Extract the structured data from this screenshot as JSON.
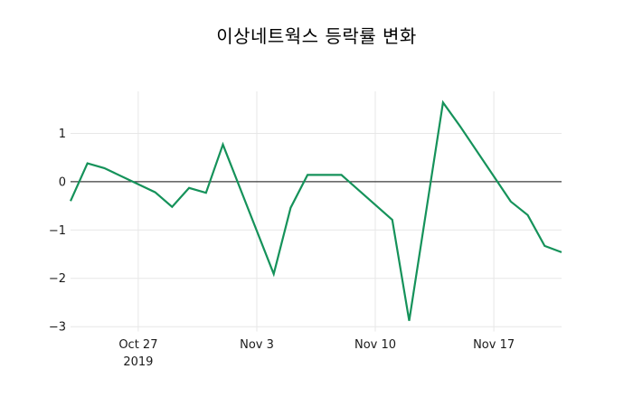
{
  "chart_data": {
    "type": "line",
    "title": "이상네트웍스 등락률 변화",
    "series_name": "등락률",
    "x": [
      "2019-10-23",
      "2019-10-24",
      "2019-10-25",
      "2019-10-28",
      "2019-10-29",
      "2019-10-30",
      "2019-10-31",
      "2019-11-01",
      "2019-11-04",
      "2019-11-05",
      "2019-11-06",
      "2019-11-07",
      "2019-11-08",
      "2019-11-11",
      "2019-11-12",
      "2019-11-13",
      "2019-11-14",
      "2019-11-15",
      "2019-11-18",
      "2019-11-19",
      "2019-11-20",
      "2019-11-21"
    ],
    "values": [
      -0.4,
      0.38,
      0.28,
      -0.22,
      -0.52,
      -0.13,
      -0.23,
      0.77,
      -1.91,
      -0.54,
      0.14,
      0.14,
      0.14,
      -0.79,
      -2.88,
      -0.62,
      1.64,
      1.15,
      -0.41,
      -0.69,
      -1.33,
      -1.46
    ],
    "x_ticks": [
      {
        "date": "2019-10-27",
        "label": "Oct 27",
        "sublabel": "2019"
      },
      {
        "date": "2019-11-03",
        "label": "Nov 3"
      },
      {
        "date": "2019-11-10",
        "label": "Nov 10"
      },
      {
        "date": "2019-11-17",
        "label": "Nov 17"
      }
    ],
    "y_ticks": [
      {
        "value": 1,
        "label": "1"
      },
      {
        "value": 0,
        "label": "0"
      },
      {
        "value": -1,
        "label": "−1"
      },
      {
        "value": -2,
        "label": "−2"
      },
      {
        "value": -3,
        "label": "−3"
      }
    ],
    "xlim": [
      "2019-10-23",
      "2019-11-21"
    ],
    "ylim": [
      -3.1,
      1.87
    ],
    "grid": true,
    "legend": "none",
    "colors": {
      "line": "#15925a",
      "zero_line": "#3c3c3c",
      "grid": "#e7e7e7",
      "tick_text": "#1a1a1a",
      "title_text": "#000000",
      "background": "#ffffff"
    }
  }
}
